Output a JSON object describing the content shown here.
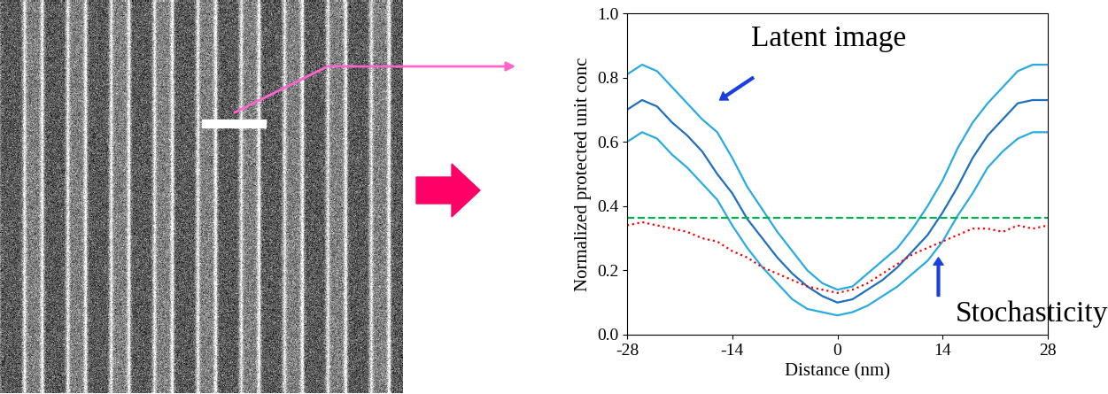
{
  "chart_data": {
    "type": "line",
    "x_label": "Distance (nm)",
    "y_label": "Normalized protected unit conc",
    "x": [
      -28,
      -26,
      -24,
      -22,
      -20,
      -18,
      -16,
      -14,
      -12,
      -10,
      -8,
      -6,
      -4,
      -2,
      0,
      2,
      4,
      6,
      8,
      10,
      12,
      14,
      16,
      18,
      20,
      22,
      24,
      26,
      28
    ],
    "xlim": [
      -28,
      28
    ],
    "xticks": [
      -28,
      -14,
      0,
      14,
      28
    ],
    "ylim": [
      0.0,
      1.0
    ],
    "yticks": [
      0.0,
      0.2,
      0.4,
      0.6,
      0.8,
      1.0
    ],
    "series": [
      {
        "color": "#29abe2",
        "line_style": "solid",
        "values": [
          0.81,
          0.84,
          0.82,
          0.77,
          0.72,
          0.67,
          0.63,
          0.55,
          0.46,
          0.39,
          0.32,
          0.26,
          0.2,
          0.16,
          0.14,
          0.15,
          0.19,
          0.23,
          0.27,
          0.33,
          0.4,
          0.48,
          0.58,
          0.66,
          0.72,
          0.77,
          0.82,
          0.84,
          0.84
        ]
      },
      {
        "color": "#1f6fbf",
        "line_style": "solid",
        "values": [
          0.7,
          0.73,
          0.71,
          0.66,
          0.62,
          0.57,
          0.5,
          0.44,
          0.36,
          0.3,
          0.24,
          0.19,
          0.15,
          0.12,
          0.1,
          0.11,
          0.14,
          0.17,
          0.21,
          0.26,
          0.31,
          0.38,
          0.46,
          0.55,
          0.62,
          0.67,
          0.72,
          0.73,
          0.73
        ]
      },
      {
        "color": "#29abe2",
        "line_style": "solid",
        "values": [
          0.6,
          0.63,
          0.61,
          0.56,
          0.52,
          0.47,
          0.42,
          0.34,
          0.27,
          0.21,
          0.16,
          0.11,
          0.08,
          0.07,
          0.06,
          0.07,
          0.09,
          0.12,
          0.15,
          0.19,
          0.23,
          0.29,
          0.37,
          0.44,
          0.52,
          0.57,
          0.61,
          0.63,
          0.63
        ]
      },
      {
        "color": "#ff0000",
        "line_style": "dotted",
        "values": [
          0.34,
          0.35,
          0.34,
          0.33,
          0.32,
          0.3,
          0.29,
          0.26,
          0.24,
          0.21,
          0.19,
          0.17,
          0.15,
          0.14,
          0.13,
          0.14,
          0.16,
          0.19,
          0.22,
          0.25,
          0.27,
          0.29,
          0.31,
          0.33,
          0.33,
          0.32,
          0.34,
          0.33,
          0.34
        ]
      }
    ],
    "reference_line": {
      "value": 0.365,
      "color": "#00b050",
      "line_style": "dashed"
    },
    "annotations": [
      "Latent image",
      "Stochasticity"
    ]
  }
}
